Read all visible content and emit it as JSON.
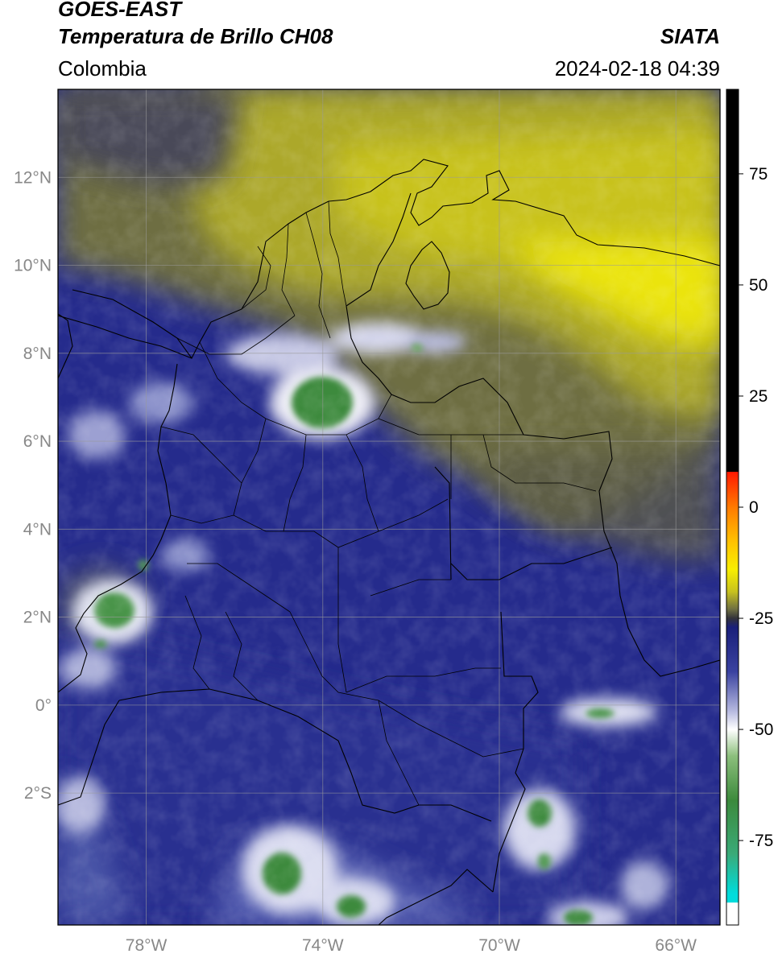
{
  "header": {
    "satellite": "GOES-EAST",
    "product": "Temperatura de Brillo CH08",
    "agency": "SIATA",
    "region": "Colombia",
    "datetime": "2024-02-18 04:39"
  },
  "map": {
    "lat_ticks": [
      {
        "value": 12,
        "label": "12°N"
      },
      {
        "value": 10,
        "label": "10°N"
      },
      {
        "value": 8,
        "label": "8°N"
      },
      {
        "value": 6,
        "label": "6°N"
      },
      {
        "value": 4,
        "label": "4°N"
      },
      {
        "value": 2,
        "label": "2°N"
      },
      {
        "value": 0,
        "label": "0°"
      },
      {
        "value": -2,
        "label": "2°S"
      }
    ],
    "lon_ticks": [
      {
        "value": -78,
        "label": "78°W"
      },
      {
        "value": -74,
        "label": "74°W"
      },
      {
        "value": -70,
        "label": "70°W"
      },
      {
        "value": -66,
        "label": "66°W"
      }
    ],
    "lon_range": [
      -80,
      -65
    ],
    "lat_range": [
      -5,
      14
    ],
    "gridlines": true,
    "colors": {
      "dry_air": "#c8c21e",
      "warm_band": "#6e6e42",
      "moist_air": "#2d3596",
      "deep_moist": "#1a1f7a",
      "cold_cloud": "#e8eaf4",
      "very_cold_cloud": "#3c8a3c"
    }
  },
  "colorbar": {
    "ticks": [
      {
        "value": 75,
        "label": "75"
      },
      {
        "value": 50,
        "label": "50"
      },
      {
        "value": 25,
        "label": "25"
      },
      {
        "value": 0,
        "label": "0"
      },
      {
        "value": -25,
        "label": "-25"
      },
      {
        "value": -50,
        "label": "-50"
      },
      {
        "value": -75,
        "label": "-75"
      }
    ],
    "range": [
      -94,
      94
    ],
    "stops": [
      {
        "value": 94,
        "color": "#000000"
      },
      {
        "value": 8,
        "color": "#000000"
      },
      {
        "value": 7.9,
        "color": "#ff1a00"
      },
      {
        "value": 0,
        "color": "#ff7a00"
      },
      {
        "value": -8,
        "color": "#ffc400"
      },
      {
        "value": -14,
        "color": "#f8ee00"
      },
      {
        "value": -19,
        "color": "#c8c21e"
      },
      {
        "value": -23,
        "color": "#6e6e42"
      },
      {
        "value": -25,
        "color": "#33333a"
      },
      {
        "value": -27,
        "color": "#1a1f7a"
      },
      {
        "value": -37,
        "color": "#3a42a0"
      },
      {
        "value": -46,
        "color": "#b8bbe0"
      },
      {
        "value": -50,
        "color": "#ffffff"
      },
      {
        "value": -56,
        "color": "#8cbf7c"
      },
      {
        "value": -66,
        "color": "#3c8a3c"
      },
      {
        "value": -78,
        "color": "#3aaa78"
      },
      {
        "value": -87,
        "color": "#00dcdc"
      },
      {
        "value": -88.9,
        "color": "#00dcdc"
      },
      {
        "value": -89,
        "color": "#ffffff"
      },
      {
        "value": -94,
        "color": "#ffffff"
      }
    ]
  }
}
